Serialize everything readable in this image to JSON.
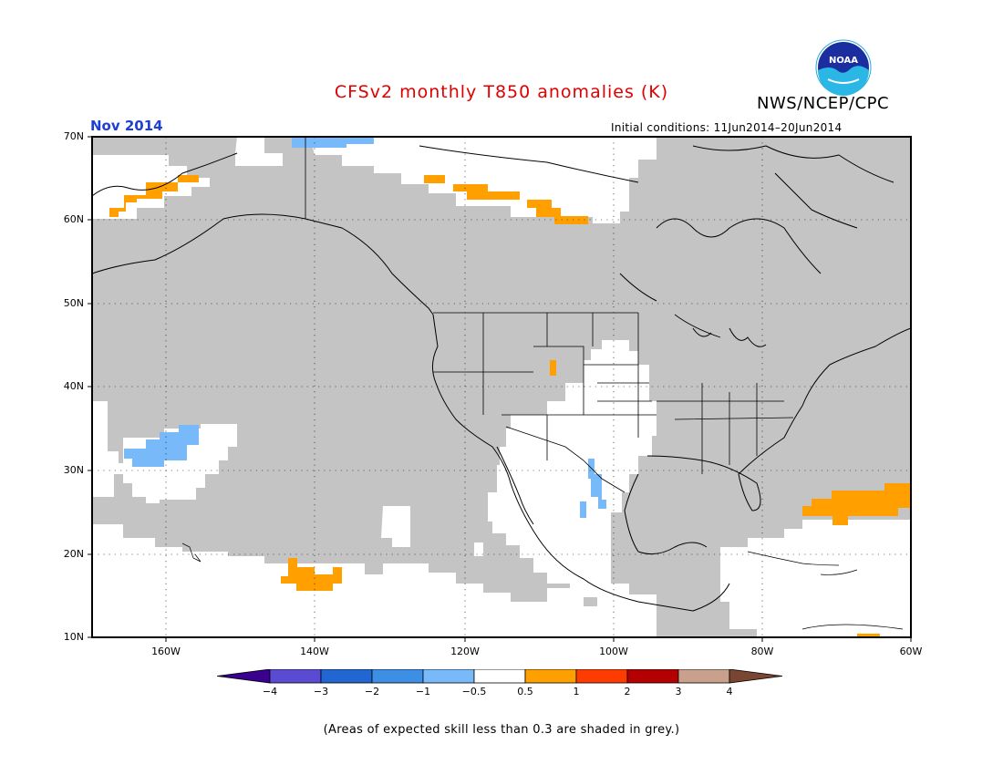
{
  "title": "CFSv2 monthly T850 anomalies (K)",
  "org": "NWS/NCEP/CPC",
  "month": "Nov 2014",
  "initial_conditions": "Initial conditions: 11Jun2014–20Jun2014",
  "footnote": "(Areas of expected skill less than 0.3 are shaded in grey.)",
  "logo_text": "NOAA",
  "map": {
    "projection": "lat-lon",
    "lon_range": [
      -170,
      -60
    ],
    "lat_range": [
      10,
      70
    ],
    "lat_labels": [
      "70N",
      "60N",
      "50N",
      "40N",
      "30N",
      "20N",
      "10N"
    ],
    "lon_labels": [
      "160W",
      "140W",
      "120W",
      "100W",
      "80W",
      "60W"
    ],
    "grid": "dotted",
    "colors": {
      "grey_low_skill": "#c4c4c4",
      "neutral": "#ffffff",
      "warm_0_5_to_1": "#ffa000",
      "cool_minus1_to_minus0_5": "#78b9fa"
    }
  },
  "colorbar": {
    "labels": [
      "−4",
      "−3",
      "−2",
      "−1",
      "−0.5",
      "0.5",
      "1",
      "2",
      "3",
      "4"
    ],
    "colors": [
      "#3a0090",
      "#5a4bd2",
      "#2166d2",
      "#3d8fe6",
      "#78b9fa",
      "#ffffff",
      "#ffa000",
      "#ff3c00",
      "#b40000",
      "#c8a08c",
      "#7a4632"
    ]
  }
}
